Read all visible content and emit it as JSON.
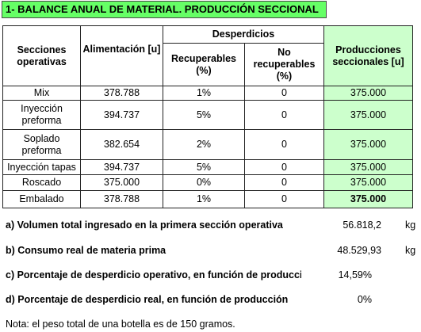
{
  "title": "1- BALANCE ANUAL DE MATERIAL. PRODUCCIÓN SECCIONAL",
  "table": {
    "headers": {
      "secciones": "Secciones operativas",
      "alimentacion": "Alimentación [u]",
      "desperdicios": "Desperdicios",
      "recuperables": "Recuperables (%)",
      "no_recuperables": "No recuperables (%)",
      "producciones": "Producciones seccionales [u]"
    },
    "rows": [
      [
        "Mix",
        "378.788",
        "1%",
        "0",
        "375.000"
      ],
      [
        "Inyección preforma",
        "394.737",
        "5%",
        "0",
        "375.000"
      ],
      [
        "Soplado preforma",
        "382.654",
        "2%",
        "0",
        "375.000"
      ],
      [
        "Inyección tapas",
        "394.737",
        "5%",
        "0",
        "375.000"
      ],
      [
        "Roscado",
        "375.000",
        "0%",
        "0",
        "375.000"
      ],
      [
        "Embalado",
        "378.788",
        "1%",
        "0",
        "375.000"
      ]
    ]
  },
  "summary": [
    {
      "label": "a) Volumen total ingresado en la primera sección operativa",
      "value": "56.818,2",
      "unit": "kg"
    },
    {
      "label": "b) Consumo real de materia prima",
      "value": "48.529,93",
      "unit": "kg"
    },
    {
      "label": "c) Porcentaje de desperdicio operativo, en función de producción",
      "value": "14,59%"
    },
    {
      "label": "d) Porcentaje de desperdicio real, en función de producción",
      "value": "0%"
    }
  ],
  "note": "Nota: el peso total de una botella es de 150 gramos."
}
